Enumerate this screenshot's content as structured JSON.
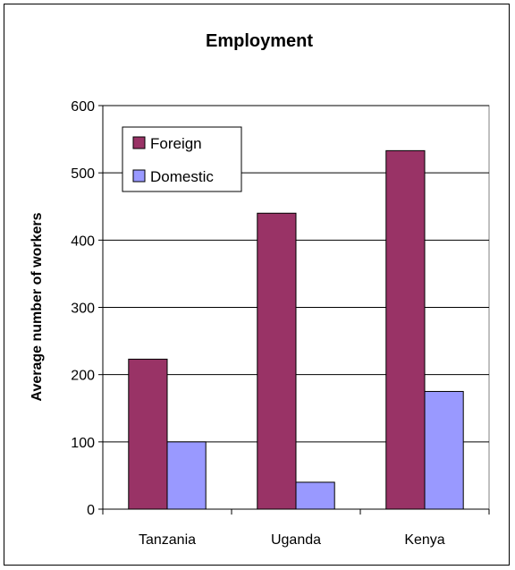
{
  "chart_data": {
    "type": "bar",
    "title": "Employment",
    "xlabel": "",
    "ylabel": "Average number of workers",
    "categories": [
      "Tanzania",
      "Uganda",
      "Kenya"
    ],
    "series": [
      {
        "name": "Foreign",
        "values": [
          223,
          440,
          533
        ],
        "color": "#993366"
      },
      {
        "name": "Domestic",
        "values": [
          100,
          40,
          175
        ],
        "color": "#9999ff"
      }
    ],
    "ylim": [
      0,
      600
    ],
    "yticks": [
      0,
      100,
      200,
      300,
      400,
      500,
      600
    ],
    "grid": true,
    "legend_position": "top-left",
    "plot_background": "#ffffff"
  }
}
